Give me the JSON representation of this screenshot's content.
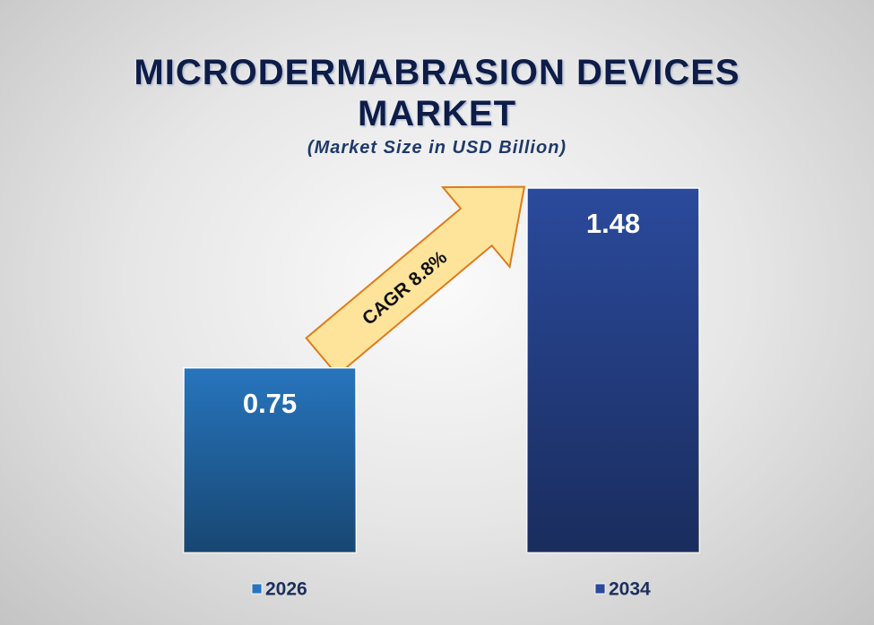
{
  "chart_data": {
    "type": "bar",
    "title": "MICRODERMABRASION DEVICES MARKET",
    "subtitle": "(Market Size in USD Billion)",
    "annotation": "CAGR 8.8%",
    "categories": [
      "2026",
      "2034"
    ],
    "values": [
      0.75,
      1.48
    ],
    "colors": [
      "#2775bd",
      "#2b4a9c"
    ],
    "legend": "bottom"
  }
}
